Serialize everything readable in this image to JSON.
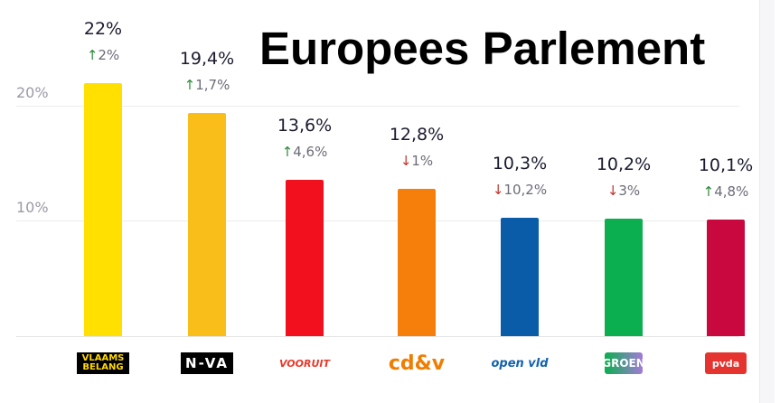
{
  "title": "Europees Parlement",
  "chart_data": {
    "type": "bar",
    "title": "Europees Parlement",
    "categories": [
      "Vlaams Belang",
      "N-VA",
      "Vooruit",
      "cd&v",
      "Open Vld",
      "Groen",
      "PVDA"
    ],
    "values": [
      22,
      19.4,
      13.6,
      12.8,
      10.3,
      10.2,
      10.1
    ],
    "value_labels": [
      "22%",
      "19,4%",
      "13,6%",
      "12,8%",
      "10,3%",
      "10,2%",
      "10,1%"
    ],
    "changes": [
      {
        "direction": "up",
        "label": "2%"
      },
      {
        "direction": "up",
        "label": "1,7%"
      },
      {
        "direction": "up",
        "label": "4,6%"
      },
      {
        "direction": "down",
        "label": "1%"
      },
      {
        "direction": "down",
        "label": "10,2%"
      },
      {
        "direction": "down",
        "label": "3%"
      },
      {
        "direction": "up",
        "label": "4,8%"
      }
    ],
    "colors": [
      "#FFE000",
      "#F9BE1A",
      "#F2101F",
      "#F57F0A",
      "#0A5BA8",
      "#0BAF50",
      "#C8083E"
    ],
    "logos": [
      "VLAAMS BELANG",
      "N-VA",
      "VOORUIT",
      "cd&v",
      "open vld",
      "GROEN",
      "pvda"
    ],
    "yticks": [
      "10%",
      "20%"
    ],
    "ylim": [
      0,
      22
    ],
    "grid": true,
    "xlabel": "",
    "ylabel": ""
  }
}
